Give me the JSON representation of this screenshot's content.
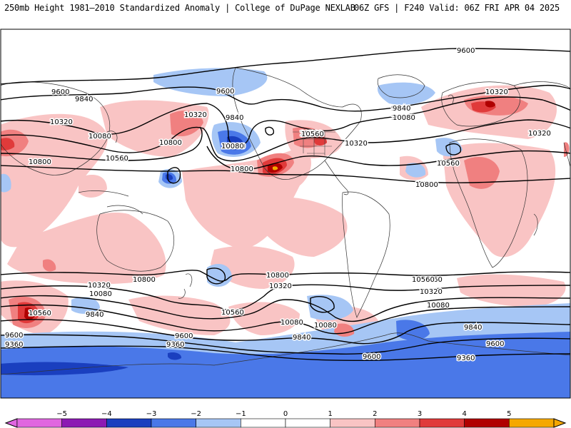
{
  "header": {
    "title_left": "250mb Height 1981–2010 Standardized Anomaly | College of DuPage NEXLAB",
    "title_right": "06Z GFS | F240 Valid: 06Z FRI APR 04 2025"
  },
  "colors": {
    "neg5": "#e066e0",
    "neg4": "#8c1ab3",
    "neg3": "#1a3fbf",
    "neg2": "#4a78e8",
    "neg1": "#a6c6f5",
    "zero": "#ffffff",
    "pos1": "#f9c4c4",
    "pos2": "#f08080",
    "pos3": "#e03a3a",
    "pos4": "#b00000",
    "pos5": "#f5a800"
  },
  "colorbar": {
    "ticks": [
      "−5",
      "−4",
      "−3",
      "−2",
      "−1",
      "0",
      "1",
      "2",
      "3",
      "4",
      "5"
    ]
  },
  "contour_labels": [
    {
      "text": "9600"
    },
    {
      "text": "9600"
    },
    {
      "text": "9600"
    },
    {
      "text": "9600"
    },
    {
      "text": "9840"
    },
    {
      "text": "9840"
    },
    {
      "text": "9840"
    },
    {
      "text": "10080"
    },
    {
      "text": "10080"
    },
    {
      "text": "10320"
    },
    {
      "text": "10320"
    },
    {
      "text": "10320"
    },
    {
      "text": "10320"
    },
    {
      "text": "10560"
    },
    {
      "text": "10560"
    },
    {
      "text": "10560"
    },
    {
      "text": "10800"
    },
    {
      "text": "10800"
    },
    {
      "text": "10800"
    },
    {
      "text": "10320"
    },
    {
      "text": "10080"
    },
    {
      "text": "10800"
    },
    {
      "text": "10800"
    },
    {
      "text": "10560"
    },
    {
      "text": "10560"
    },
    {
      "text": "10320"
    },
    {
      "text": "10080"
    },
    {
      "text": "9840"
    },
    {
      "text": "9600"
    },
    {
      "text": "9360"
    },
    {
      "text": "10320"
    },
    {
      "text": "10080"
    },
    {
      "text": "10560"
    },
    {
      "text": "9840"
    },
    {
      "text": "9600"
    },
    {
      "text": "9360"
    },
    {
      "text": "9600"
    },
    {
      "text": "9360"
    },
    {
      "text": "10560"
    },
    {
      "text": "10320"
    },
    {
      "text": "10080"
    },
    {
      "text": "9840"
    },
    {
      "text": "10080"
    },
    {
      "text": "10080"
    },
    {
      "text": "9840"
    },
    {
      "text": "10560"
    },
    {
      "text": "10800"
    },
    {
      "text": "10080"
    },
    {
      "text": "10320"
    }
  ]
}
